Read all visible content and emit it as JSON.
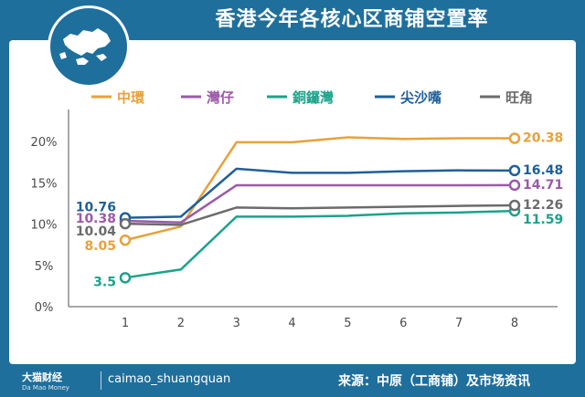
{
  "header": {
    "title": "香港今年各核心区商铺空置率"
  },
  "footer": {
    "brand": "大猫财经",
    "brand_sub": "Da Mao Money",
    "handle": "caimao_shuangquan",
    "source": "来源：中原（工商铺）及市场资讯"
  },
  "colors": {
    "frame": "#1f6f9c",
    "axis": "#8c8c8c"
  },
  "chart_data": {
    "type": "line",
    "title": "香港今年各核心区商铺空置率",
    "xlabel": "",
    "ylabel": "",
    "x": [
      "1",
      "2",
      "3",
      "4",
      "5",
      "6",
      "7",
      "8"
    ],
    "ylim": [
      0,
      22
    ],
    "yticks": [
      "0%",
      "5%",
      "10%",
      "15%",
      "20%"
    ],
    "ytick_values": [
      0,
      5,
      10,
      15,
      20
    ],
    "legend_position": "top",
    "grid": false,
    "series": [
      {
        "name": "中環",
        "color": "#e8a13a",
        "values": [
          8.05,
          9.7,
          19.9,
          19.9,
          20.5,
          20.3,
          20.38,
          20.38
        ],
        "start_label": "8.05",
        "end_label": "20.38"
      },
      {
        "name": "灣仔",
        "color": "#9b59a8",
        "values": [
          10.38,
          10.2,
          14.7,
          14.7,
          14.7,
          14.7,
          14.7,
          14.71
        ],
        "start_label": "10.38",
        "end_label": "14.71"
      },
      {
        "name": "銅鑼灣",
        "color": "#1aa38a",
        "values": [
          3.5,
          4.5,
          10.9,
          10.9,
          11.0,
          11.3,
          11.4,
          11.59
        ],
        "start_label": "3.5",
        "end_label": "11.59"
      },
      {
        "name": "尖沙嘴",
        "color": "#1f5f9a",
        "values": [
          10.76,
          10.9,
          16.7,
          16.2,
          16.2,
          16.4,
          16.5,
          16.48
        ],
        "start_label": "10.76",
        "end_label": "16.48"
      },
      {
        "name": "旺角",
        "color": "#6b6b6b",
        "values": [
          10.04,
          9.9,
          12.0,
          11.9,
          12.0,
          12.1,
          12.2,
          12.26
        ],
        "start_label": "10.04",
        "end_label": "12.26"
      }
    ]
  }
}
